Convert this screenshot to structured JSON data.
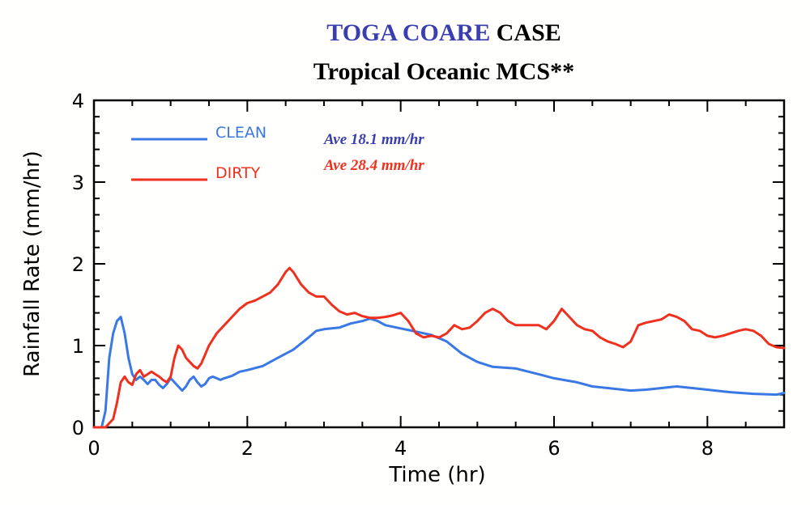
{
  "title": {
    "part1": "TOGA COARE",
    "part2": " CASE",
    "subtitle": "Tropical Oceanic MCS**"
  },
  "colors": {
    "clean": "#3a78e6",
    "dirty": "#f0301e",
    "title_accent": "#3a3eae",
    "ann_clean": "#3a3eae",
    "ann_dirty": "#f0301e"
  },
  "chart_data": {
    "type": "line",
    "xlabel": "Time (hr)",
    "ylabel": "Rainfall Rate (mm/hr)",
    "xlim": [
      0,
      9
    ],
    "ylim": [
      0,
      4
    ],
    "xticks": [
      0,
      2,
      4,
      6,
      8
    ],
    "yticks": [
      0,
      1,
      2,
      3,
      4
    ],
    "grid": false,
    "legend_position": "top-left",
    "series": [
      {
        "name": "CLEAN",
        "color": "#3a78e6",
        "x": [
          0,
          0.1,
          0.15,
          0.2,
          0.25,
          0.3,
          0.35,
          0.4,
          0.45,
          0.5,
          0.55,
          0.6,
          0.65,
          0.7,
          0.75,
          0.8,
          0.85,
          0.9,
          0.95,
          1.0,
          1.05,
          1.1,
          1.15,
          1.2,
          1.25,
          1.3,
          1.35,
          1.4,
          1.45,
          1.5,
          1.55,
          1.6,
          1.65,
          1.7,
          1.8,
          1.9,
          2.0,
          2.2,
          2.4,
          2.6,
          2.8,
          2.9,
          3.0,
          3.2,
          3.35,
          3.5,
          3.6,
          3.7,
          3.8,
          4.0,
          4.2,
          4.4,
          4.6,
          4.8,
          5.0,
          5.2,
          5.5,
          5.8,
          6.0,
          6.3,
          6.5,
          6.8,
          7.0,
          7.2,
          7.4,
          7.6,
          7.8,
          8.0,
          8.3,
          8.6,
          8.9,
          9.0
        ],
        "y": [
          0.0,
          0.0,
          0.2,
          0.85,
          1.15,
          1.3,
          1.35,
          1.15,
          0.85,
          0.65,
          0.58,
          0.62,
          0.58,
          0.53,
          0.58,
          0.58,
          0.52,
          0.48,
          0.53,
          0.6,
          0.55,
          0.5,
          0.45,
          0.5,
          0.58,
          0.62,
          0.55,
          0.5,
          0.53,
          0.6,
          0.62,
          0.6,
          0.58,
          0.6,
          0.63,
          0.68,
          0.7,
          0.75,
          0.85,
          0.95,
          1.1,
          1.18,
          1.2,
          1.22,
          1.27,
          1.3,
          1.33,
          1.3,
          1.25,
          1.21,
          1.17,
          1.13,
          1.05,
          0.9,
          0.8,
          0.74,
          0.72,
          0.65,
          0.6,
          0.55,
          0.5,
          0.47,
          0.45,
          0.46,
          0.48,
          0.5,
          0.48,
          0.46,
          0.43,
          0.41,
          0.4,
          0.42
        ]
      },
      {
        "name": "DIRTY",
        "color": "#f0301e",
        "x": [
          0,
          0.15,
          0.2,
          0.25,
          0.3,
          0.35,
          0.4,
          0.45,
          0.5,
          0.55,
          0.6,
          0.65,
          0.7,
          0.75,
          0.8,
          0.85,
          0.9,
          0.95,
          1.0,
          1.05,
          1.1,
          1.15,
          1.2,
          1.25,
          1.3,
          1.35,
          1.4,
          1.5,
          1.6,
          1.7,
          1.8,
          1.9,
          2.0,
          2.1,
          2.2,
          2.3,
          2.4,
          2.5,
          2.55,
          2.6,
          2.7,
          2.8,
          2.9,
          3.0,
          3.1,
          3.2,
          3.3,
          3.4,
          3.5,
          3.6,
          3.7,
          3.8,
          3.9,
          4.0,
          4.1,
          4.2,
          4.3,
          4.4,
          4.5,
          4.6,
          4.7,
          4.8,
          4.9,
          5.0,
          5.1,
          5.2,
          5.3,
          5.4,
          5.5,
          5.6,
          5.8,
          5.9,
          6.0,
          6.1,
          6.2,
          6.3,
          6.4,
          6.5,
          6.6,
          6.7,
          6.8,
          6.9,
          7.0,
          7.1,
          7.2,
          7.3,
          7.4,
          7.5,
          7.6,
          7.7,
          7.8,
          7.9,
          8.0,
          8.1,
          8.2,
          8.3,
          8.4,
          8.5,
          8.6,
          8.7,
          8.8,
          8.9,
          9.0
        ],
        "y": [
          0.0,
          0.0,
          0.05,
          0.1,
          0.3,
          0.55,
          0.62,
          0.55,
          0.52,
          0.65,
          0.7,
          0.62,
          0.65,
          0.68,
          0.65,
          0.62,
          0.58,
          0.55,
          0.62,
          0.85,
          1.0,
          0.95,
          0.85,
          0.8,
          0.75,
          0.72,
          0.78,
          1.0,
          1.15,
          1.25,
          1.35,
          1.45,
          1.52,
          1.55,
          1.6,
          1.65,
          1.75,
          1.9,
          1.95,
          1.9,
          1.75,
          1.65,
          1.6,
          1.6,
          1.5,
          1.42,
          1.38,
          1.4,
          1.36,
          1.34,
          1.34,
          1.35,
          1.37,
          1.4,
          1.3,
          1.15,
          1.1,
          1.12,
          1.1,
          1.15,
          1.25,
          1.2,
          1.22,
          1.3,
          1.4,
          1.45,
          1.4,
          1.3,
          1.25,
          1.25,
          1.25,
          1.2,
          1.3,
          1.45,
          1.35,
          1.25,
          1.2,
          1.18,
          1.1,
          1.05,
          1.02,
          0.98,
          1.05,
          1.25,
          1.28,
          1.3,
          1.32,
          1.38,
          1.35,
          1.3,
          1.2,
          1.18,
          1.12,
          1.1,
          1.12,
          1.15,
          1.18,
          1.2,
          1.18,
          1.12,
          1.02,
          0.98,
          0.97
        ]
      }
    ],
    "annotations": [
      {
        "text": "Ave 18.1 mm/hr",
        "series": "CLEAN"
      },
      {
        "text": "Ave 28.4 mm/hr",
        "series": "DIRTY"
      }
    ]
  }
}
